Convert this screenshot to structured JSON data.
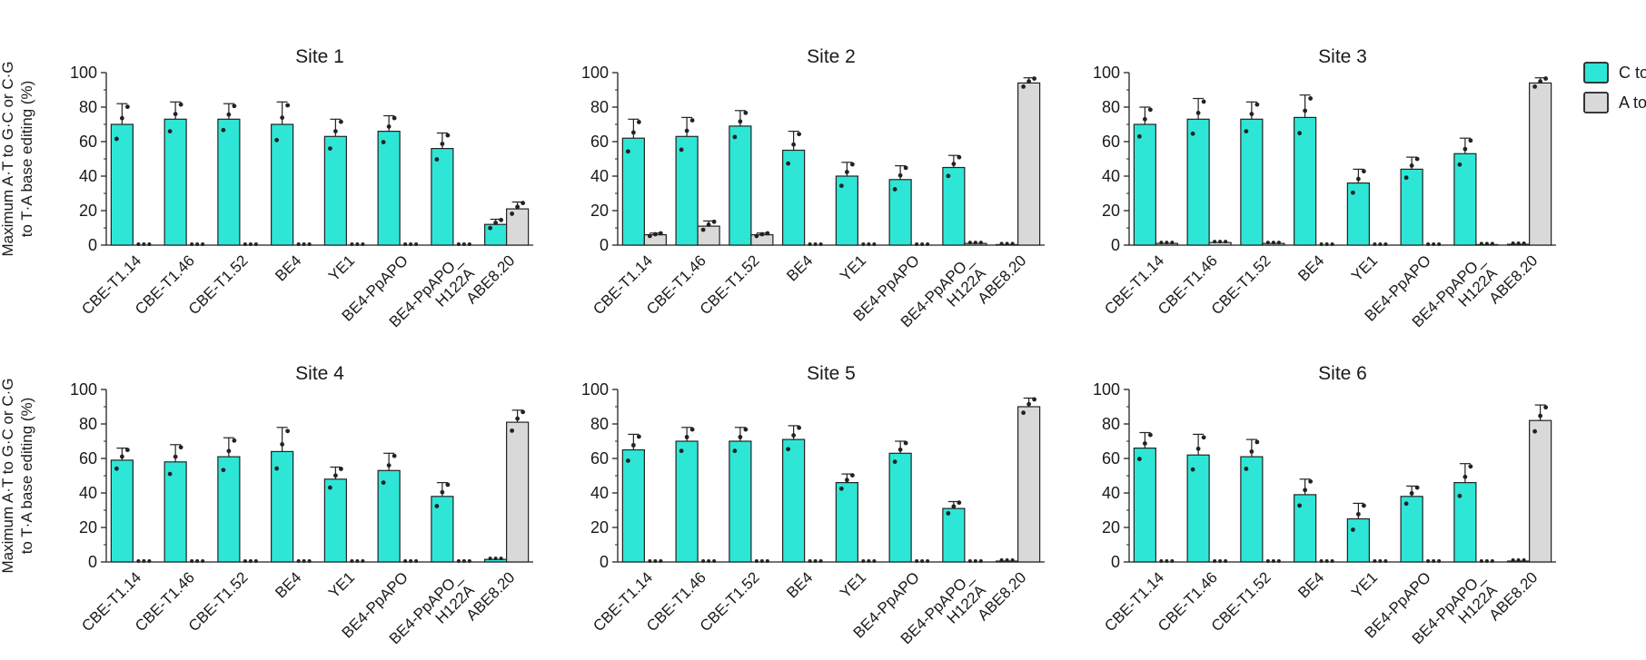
{
  "chart_data": {
    "type": "bar",
    "ylabel_lines": [
      "Maximum A·T to G·C or C·G",
      "to T·A base editing (%)"
    ],
    "ylim": [
      0,
      100
    ],
    "yticks": [
      0,
      20,
      40,
      60,
      80,
      100
    ],
    "grid": false,
    "legend": {
      "placement": "top-right",
      "entries": [
        {
          "label": "C to T",
          "color": "#2ee6d6"
        },
        {
          "label": "A to G",
          "color": "#d9d9d9"
        }
      ]
    },
    "categories": [
      [
        "CBE-T1.14"
      ],
      [
        "CBE-T1.46"
      ],
      [
        "CBE-T1.52"
      ],
      [
        "BE4"
      ],
      [
        "YE1"
      ],
      [
        "BE4-PpAPO"
      ],
      [
        "BE4-PpAPO_",
        "H122A"
      ],
      [
        "ABE8.20"
      ]
    ],
    "series_names": [
      "C to T",
      "A to G"
    ],
    "panels": [
      {
        "title": "Site 1",
        "c_to_t": [
          70,
          73,
          73,
          70,
          63,
          66,
          56,
          12
        ],
        "c_to_t_err": [
          12,
          10,
          9,
          13,
          10,
          9,
          9,
          3
        ],
        "a_to_g": [
          0,
          0,
          0,
          0,
          0,
          0,
          0,
          21
        ],
        "a_to_g_err": [
          0,
          0,
          0,
          0,
          0,
          0,
          0,
          4
        ]
      },
      {
        "title": "Site 2",
        "c_to_t": [
          62,
          63,
          69,
          55,
          40,
          38,
          45,
          0.3
        ],
        "c_to_t_err": [
          11,
          11,
          9,
          11,
          8,
          8,
          7,
          0
        ],
        "a_to_g": [
          6,
          11,
          6,
          0,
          0,
          0,
          1,
          94
        ],
        "a_to_g_err": [
          1,
          3,
          1,
          0,
          0,
          0,
          0.5,
          3
        ]
      },
      {
        "title": "Site 3",
        "c_to_t": [
          70,
          73,
          73,
          74,
          36,
          44,
          53,
          0.5
        ],
        "c_to_t_err": [
          10,
          12,
          10,
          13,
          8,
          7,
          9,
          0
        ],
        "a_to_g": [
          1,
          1.5,
          1,
          0,
          0,
          0,
          0.3,
          94
        ],
        "a_to_g_err": [
          0.5,
          0.5,
          0.5,
          0,
          0,
          0,
          0,
          3
        ]
      },
      {
        "title": "Site 4",
        "c_to_t": [
          59,
          58,
          61,
          64,
          48,
          53,
          38,
          1.5
        ],
        "c_to_t_err": [
          7,
          10,
          11,
          14,
          7,
          10,
          8,
          0.5
        ],
        "a_to_g": [
          0,
          0,
          0,
          0,
          0,
          0,
          0,
          81
        ],
        "a_to_g_err": [
          0,
          0,
          0,
          0,
          0,
          0,
          0,
          7
        ]
      },
      {
        "title": "Site 5",
        "c_to_t": [
          65,
          70,
          70,
          71,
          46,
          63,
          31,
          0.5
        ],
        "c_to_t_err": [
          9,
          8,
          8,
          8,
          5,
          7,
          4,
          0
        ],
        "a_to_g": [
          0,
          0,
          0,
          0,
          0,
          0,
          0,
          90
        ],
        "a_to_g_err": [
          0,
          0,
          0,
          0,
          0,
          0,
          0,
          5
        ]
      },
      {
        "title": "Site 6",
        "c_to_t": [
          66,
          62,
          61,
          39,
          25,
          38,
          46,
          0.5
        ],
        "c_to_t_err": [
          9,
          12,
          10,
          9,
          9,
          6,
          11,
          0
        ],
        "a_to_g": [
          0,
          0,
          0,
          0,
          0,
          0,
          0,
          82
        ],
        "a_to_g_err": [
          0,
          0,
          0,
          0,
          0,
          0,
          0,
          9
        ]
      }
    ]
  }
}
